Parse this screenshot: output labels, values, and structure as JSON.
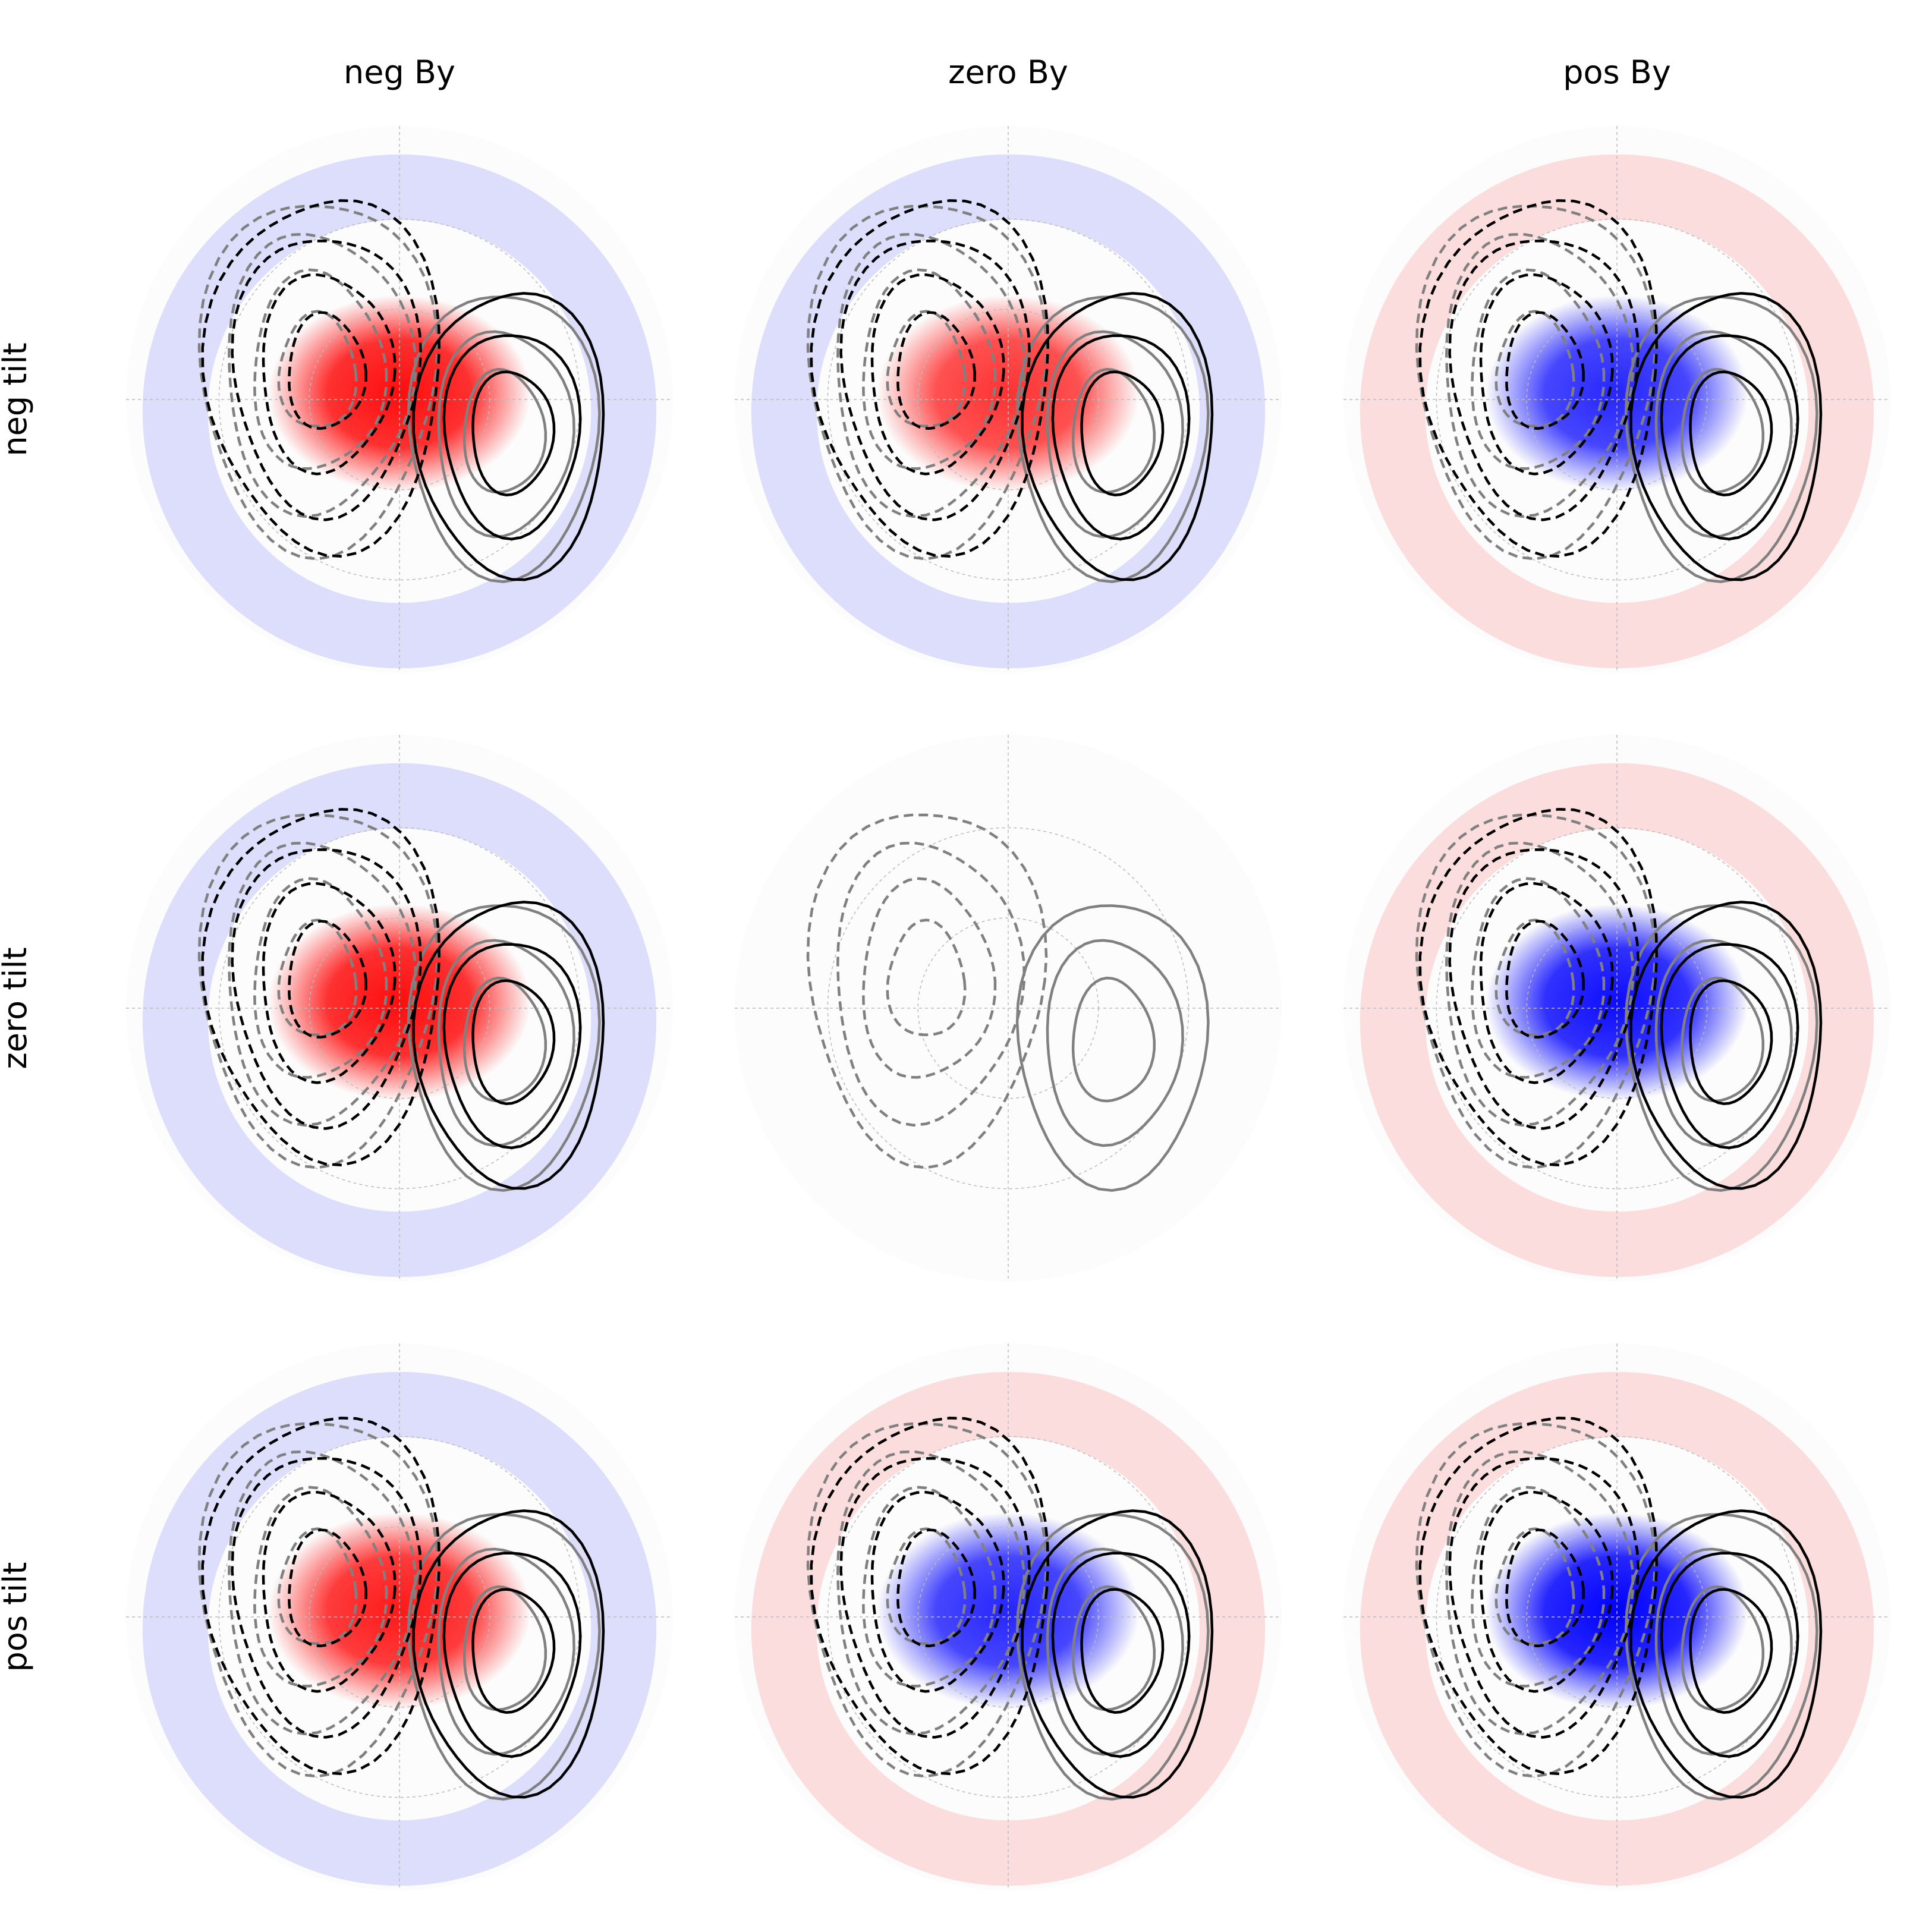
{
  "figure": {
    "col_labels": [
      "neg By",
      "zero By",
      "pos By"
    ],
    "row_labels": [
      "neg tilt",
      "zero tilt",
      "pos tilt"
    ]
  },
  "chart_data": {
    "type": "heatmap",
    "projection": "polar",
    "grid": true,
    "colormap": [
      "#0000ff",
      "#ffffff",
      "#ff0000"
    ],
    "contour_styles": {
      "perturbed": {
        "color": "#000000",
        "negative": "dashed",
        "positive": "solid"
      },
      "reference": {
        "color": "#808080",
        "negative": "dashed",
        "positive": "solid"
      }
    },
    "panels": [
      {
        "row": "neg tilt",
        "col": "neg By",
        "anomaly_sign": "positive",
        "anomaly_strength": 0.95
      },
      {
        "row": "neg tilt",
        "col": "zero By",
        "anomaly_sign": "positive",
        "anomaly_strength": 0.8
      },
      {
        "row": "neg tilt",
        "col": "pos By",
        "anomaly_sign": "negative",
        "anomaly_strength": 0.85
      },
      {
        "row": "zero tilt",
        "col": "neg By",
        "anomaly_sign": "positive",
        "anomaly_strength": 0.95
      },
      {
        "row": "zero tilt",
        "col": "zero By",
        "anomaly_sign": "none",
        "anomaly_strength": 0
      },
      {
        "row": "zero tilt",
        "col": "pos By",
        "anomaly_sign": "negative",
        "anomaly_strength": 0.95
      },
      {
        "row": "pos tilt",
        "col": "neg By",
        "anomaly_sign": "positive",
        "anomaly_strength": 0.9
      },
      {
        "row": "pos tilt",
        "col": "zero By",
        "anomaly_sign": "negative",
        "anomaly_strength": 0.85
      },
      {
        "row": "pos tilt",
        "col": "pos By",
        "anomaly_sign": "negative",
        "anomaly_strength": 1.0
      }
    ]
  }
}
